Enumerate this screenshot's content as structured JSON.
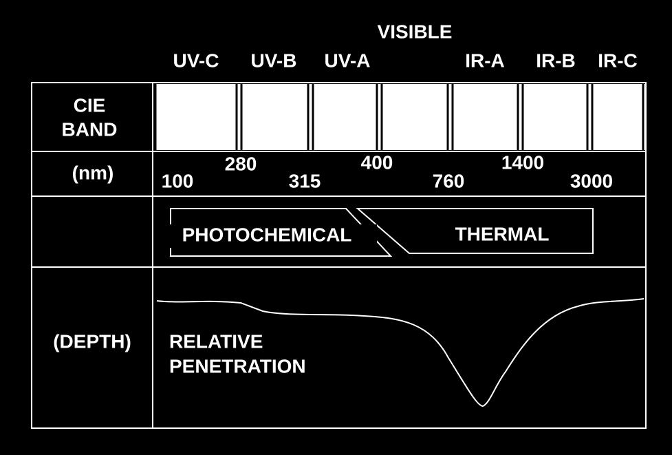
{
  "bands": {
    "visible": "VISIBLE",
    "labels": [
      "UV-C",
      "UV-B",
      "UV-A",
      "IR-A",
      "IR-B",
      "IR-C"
    ]
  },
  "row_labels": {
    "cie_band": [
      "CIE",
      "BAND"
    ],
    "nm": "(nm)",
    "depth": "(DEPTH)"
  },
  "wavelengths": [
    "100",
    "280",
    "315",
    "400",
    "760",
    "1400",
    "3000"
  ],
  "processes": {
    "photochemical": "PHOTOCHEMICAL",
    "thermal": "THERMAL"
  },
  "curve_label": [
    "RELATIVE",
    "PENETRATION"
  ]
}
